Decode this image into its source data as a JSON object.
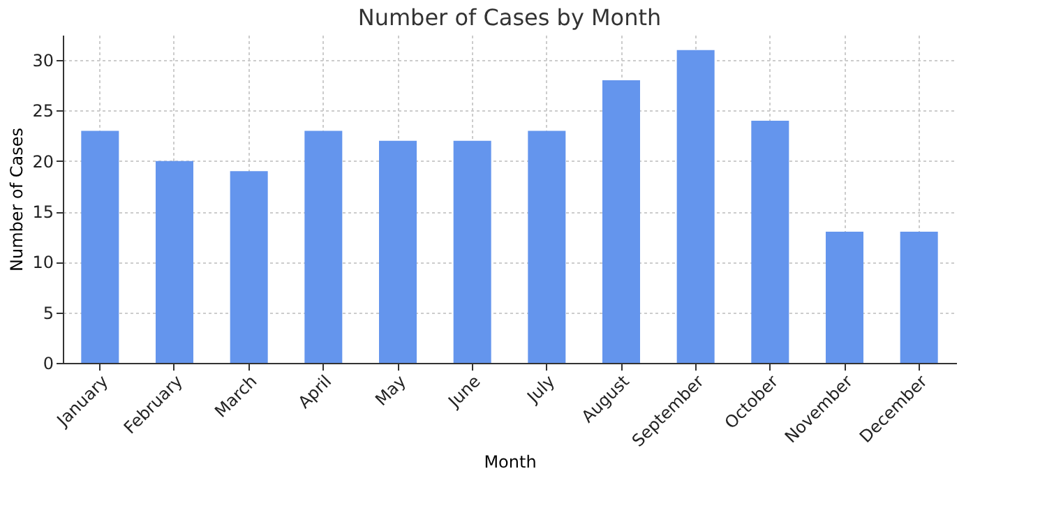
{
  "chart_data": {
    "type": "bar",
    "title": "Number of Cases by Month",
    "xlabel": "Month",
    "ylabel": "Number of Cases",
    "categories": [
      "January",
      "February",
      "March",
      "April",
      "May",
      "June",
      "July",
      "August",
      "September",
      "October",
      "November",
      "December"
    ],
    "values": [
      23,
      20,
      19,
      23,
      22,
      22,
      23,
      28,
      31,
      24,
      13,
      13
    ],
    "color": "#6495ed",
    "ylim": [
      0,
      32.5
    ],
    "yticks": [
      0,
      5,
      10,
      15,
      20,
      25,
      30
    ],
    "grid": true
  }
}
